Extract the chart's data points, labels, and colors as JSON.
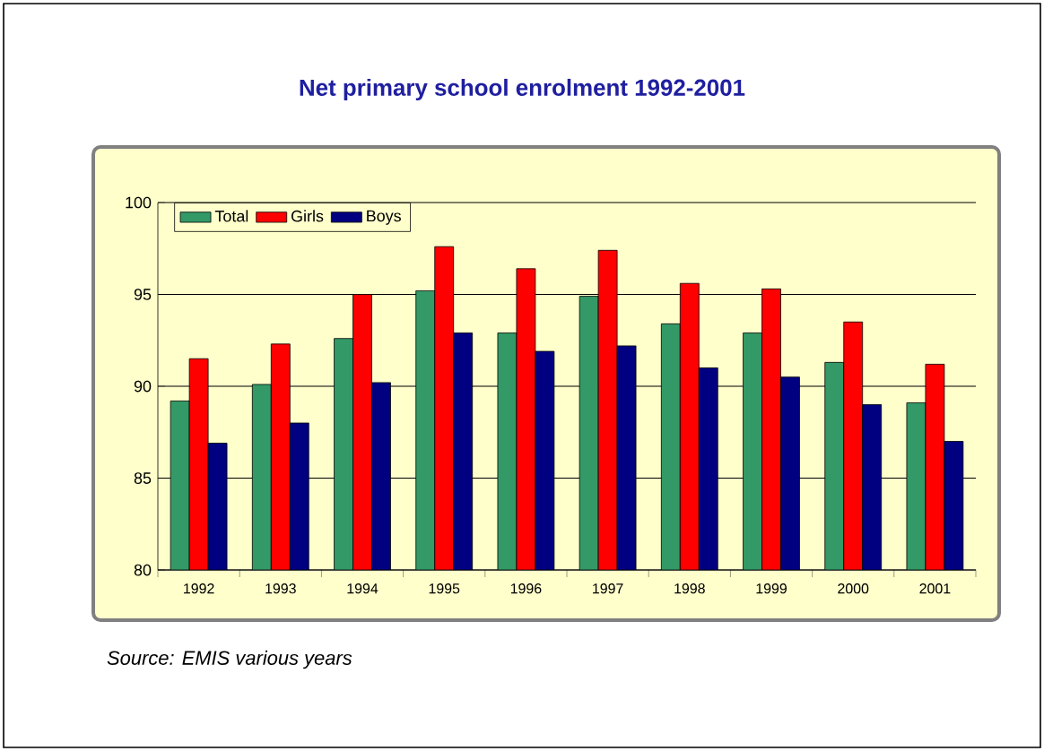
{
  "chart_data": {
    "type": "bar",
    "title": "Net primary school enrolment 1992-2001",
    "categories": [
      "1992",
      "1993",
      "1994",
      "1995",
      "1996",
      "1997",
      "1998",
      "1999",
      "2000",
      "2001"
    ],
    "series": [
      {
        "name": "Total",
        "color": "#339966",
        "values": [
          89.2,
          90.1,
          92.6,
          95.2,
          92.9,
          94.9,
          93.4,
          92.9,
          91.3,
          89.1
        ]
      },
      {
        "name": "Girls",
        "color": "#ff0000",
        "values": [
          91.5,
          92.3,
          95.0,
          97.6,
          96.4,
          97.4,
          95.6,
          95.3,
          93.5,
          91.2
        ]
      },
      {
        "name": "Boys",
        "color": "#000080",
        "values": [
          86.9,
          88.0,
          90.2,
          92.9,
          91.9,
          92.2,
          91.0,
          90.5,
          89.0,
          87.0
        ]
      }
    ],
    "ylim": [
      80,
      100
    ],
    "yticks": [
      80,
      85,
      90,
      95,
      100
    ],
    "grid": "y",
    "legend": "top left",
    "annotations": [
      "*Source: EMIS various years*"
    ]
  }
}
